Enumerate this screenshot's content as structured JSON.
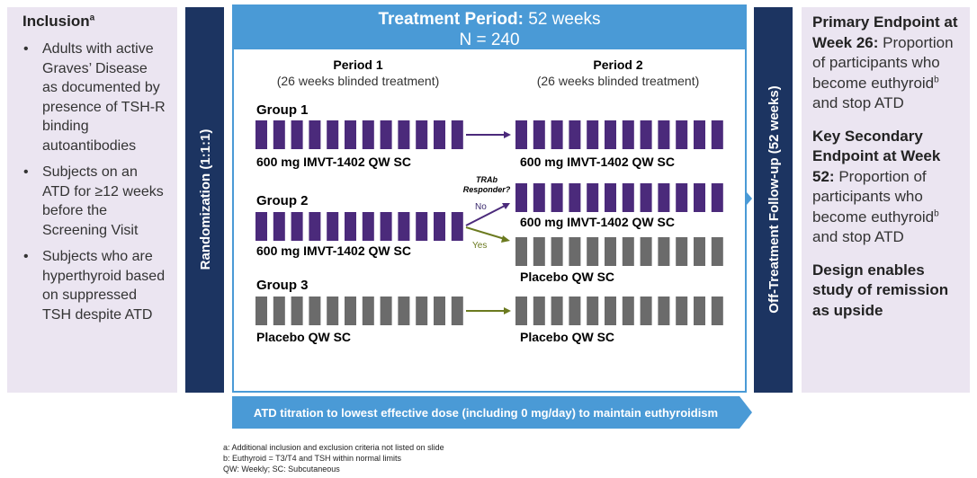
{
  "inclusion": {
    "title": "Inclusion",
    "title_sup": "a",
    "bullets": [
      "Adults with active Graves’ Disease as documented by presence of TSH-R binding autoantibodies",
      "Subjects on an ATD for ≥12 weeks before the Screening Visit",
      "Subjects who are hyperthyroid based on suppressed TSH despite ATD"
    ]
  },
  "randomization": "Randomization (1:1:1)",
  "treatment": {
    "title": "Treatment Period:",
    "duration": "52 weeks",
    "n": "N = 240"
  },
  "periods": [
    {
      "name": "Period 1",
      "note": "(26 weeks blinded treatment)"
    },
    {
      "name": "Period 2",
      "note": "(26 weeks blinded treatment)"
    }
  ],
  "groups": [
    {
      "label": "Group 1",
      "period1": "600 mg IMVT-1402 QW SC",
      "period2": "600 mg IMVT-1402 QW SC"
    },
    {
      "label": "Group 2",
      "period1": "600 mg IMVT-1402 QW SC",
      "decision": [
        "TRAb",
        "Responder?"
      ],
      "no": "No",
      "yes": "Yes",
      "period2_no": "600 mg IMVT-1402 QW SC",
      "period2_yes": "Placebo QW SC"
    },
    {
      "label": "Group 3",
      "period1": "Placebo QW SC",
      "period2": "Placebo QW SC"
    }
  ],
  "follow_up": "Off-Treatment Follow-up (52 weeks)",
  "endpoints": [
    {
      "heading": "Primary Endpoint at Week 26:",
      "body": "Proportion of participants who become euthyroid",
      "sup": "b",
      "tail": "and stop ATD"
    },
    {
      "heading": "Key Secondary Endpoint at Week 52:",
      "body": "Proportion of participants who become euthyroid",
      "sup": "b",
      "tail": "and stop ATD"
    },
    {
      "heading": "Design enables study of remission as upside"
    }
  ],
  "atd_titration": "ATD titration to lowest effective dose (including 0 mg/day) to maintain euthyroidism",
  "footnotes": [
    "a: Additional inclusion and exclusion criteria not listed on slide",
    "b: Euthyroid = T3/T4 and TSH within normal limits",
    "QW: Weekly; SC: Subcutaneous"
  ]
}
